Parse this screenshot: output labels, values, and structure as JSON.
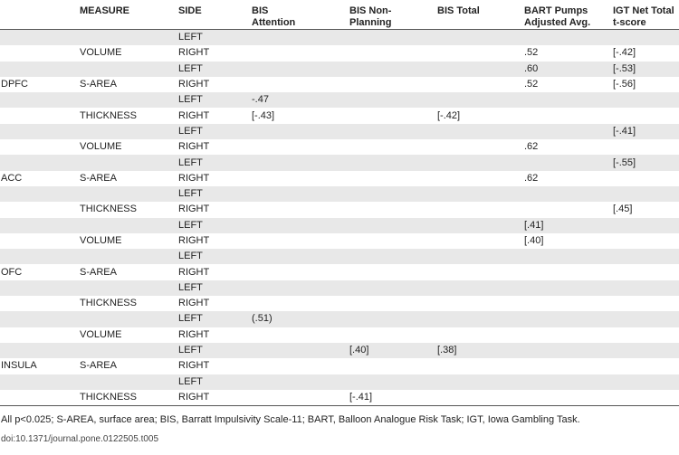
{
  "table": {
    "headers": [
      "",
      "MEASURE",
      "SIDE",
      "BIS Attention",
      "BIS Non-Planning",
      "BIS Total",
      "BART Pumps Adjusted Avg.",
      "IGT Net Total t-score"
    ],
    "header_lines": [
      [
        "",
        ""
      ],
      [
        "MEASURE",
        ""
      ],
      [
        "SIDE",
        ""
      ],
      [
        "BIS",
        "Attention"
      ],
      [
        "BIS Non-",
        "Planning"
      ],
      [
        "BIS Total",
        ""
      ],
      [
        "BART Pumps",
        "Adjusted Avg."
      ],
      [
        "IGT Net Total",
        "t-score"
      ]
    ],
    "rows": [
      [
        "",
        "",
        "LEFT",
        "",
        "",
        "",
        "",
        ""
      ],
      [
        "",
        "VOLUME",
        "RIGHT",
        "",
        "",
        "",
        ".52",
        "[-.42]"
      ],
      [
        "",
        "",
        "LEFT",
        "",
        "",
        "",
        ".60",
        "[-.53]"
      ],
      [
        "DPFC",
        "S-AREA",
        "RIGHT",
        "",
        "",
        "",
        ".52",
        "[-.56]"
      ],
      [
        "",
        "",
        "LEFT",
        "-.47",
        "",
        "",
        "",
        ""
      ],
      [
        "",
        "THICKNESS",
        "RIGHT",
        "[-.43]",
        "",
        "[-.42]",
        "",
        ""
      ],
      [
        "",
        "",
        "LEFT",
        "",
        "",
        "",
        "",
        "[-.41]"
      ],
      [
        "",
        "VOLUME",
        "RIGHT",
        "",
        "",
        "",
        ".62",
        ""
      ],
      [
        "",
        "",
        "LEFT",
        "",
        "",
        "",
        "",
        "[-.55]"
      ],
      [
        "ACC",
        "S-AREA",
        "RIGHT",
        "",
        "",
        "",
        ".62",
        ""
      ],
      [
        "",
        "",
        "LEFT",
        "",
        "",
        "",
        "",
        ""
      ],
      [
        "",
        "THICKNESS",
        "RIGHT",
        "",
        "",
        "",
        "",
        "[.45]"
      ],
      [
        "",
        "",
        "LEFT",
        "",
        "",
        "",
        "[.41]",
        ""
      ],
      [
        "",
        "VOLUME",
        "RIGHT",
        "",
        "",
        "",
        "[.40]",
        ""
      ],
      [
        "",
        "",
        "LEFT",
        "",
        "",
        "",
        "",
        ""
      ],
      [
        "OFC",
        "S-AREA",
        "RIGHT",
        "",
        "",
        "",
        "",
        ""
      ],
      [
        "",
        "",
        "LEFT",
        "",
        "",
        "",
        "",
        ""
      ],
      [
        "",
        "THICKNESS",
        "RIGHT",
        "",
        "",
        "",
        "",
        ""
      ],
      [
        "",
        "",
        "LEFT",
        "(.51)",
        "",
        "",
        "",
        ""
      ],
      [
        "",
        "VOLUME",
        "RIGHT",
        "",
        "",
        "",
        "",
        ""
      ],
      [
        "",
        "",
        "LEFT",
        "",
        "[.40]",
        "[.38]",
        "",
        ""
      ],
      [
        "INSULA",
        "S-AREA",
        "RIGHT",
        "",
        "",
        "",
        "",
        ""
      ],
      [
        "",
        "",
        "LEFT",
        "",
        "",
        "",
        "",
        ""
      ],
      [
        "",
        "THICKNESS",
        "RIGHT",
        "",
        "[-.41]",
        "",
        "",
        ""
      ]
    ]
  },
  "footnote": "All p<0.025; S-AREA, surface area; BIS, Barratt Impulsivity Scale-11; BART, Balloon Analogue Risk Task; IGT, Iowa Gambling Task.",
  "doi": "doi:10.1371/journal.pone.0122505.t005",
  "colors": {
    "shade": "#e8e8e8",
    "rule": "#555555"
  }
}
